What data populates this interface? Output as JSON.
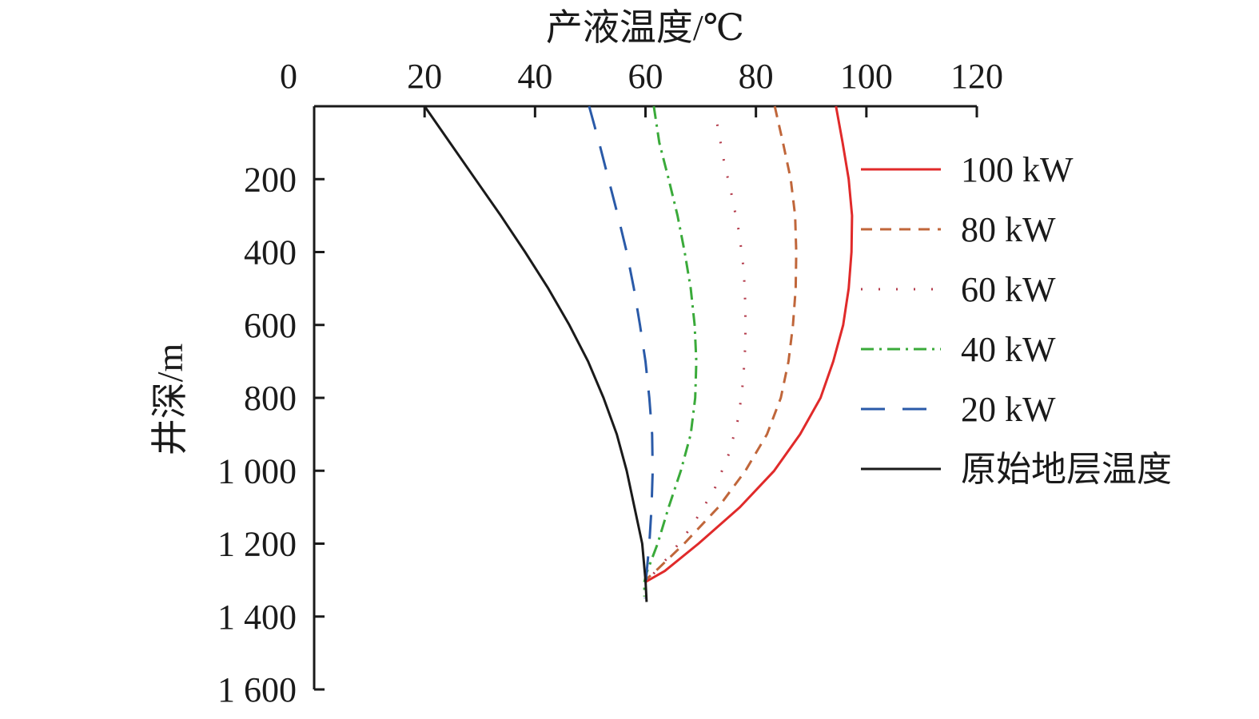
{
  "chart_data": {
    "type": "line",
    "xlabel": "产液温度/℃",
    "ylabel": "井深/m",
    "x_axis_position": "top",
    "y_inverted": true,
    "xlim": [
      0,
      120
    ],
    "ylim": [
      0,
      1600
    ],
    "x_ticks": [
      {
        "value": 0,
        "label": "0"
      },
      {
        "value": 20,
        "label": "20"
      },
      {
        "value": 40,
        "label": "40"
      },
      {
        "value": 60,
        "label": "60"
      },
      {
        "value": 80,
        "label": "80"
      },
      {
        "value": 100,
        "label": "100"
      },
      {
        "value": 120,
        "label": "120"
      }
    ],
    "y_ticks": [
      {
        "value": 200,
        "label": "200"
      },
      {
        "value": 400,
        "label": "400"
      },
      {
        "value": 600,
        "label": "600"
      },
      {
        "value": 800,
        "label": "800"
      },
      {
        "value": 1000,
        "label": "1 000"
      },
      {
        "value": 1200,
        "label": "1 200"
      },
      {
        "value": 1400,
        "label": "1 400"
      },
      {
        "value": 1600,
        "label": "1 600"
      }
    ],
    "grid": false,
    "legend_position": "right",
    "series": [
      {
        "name": "100 kW",
        "color": "#e02a2a",
        "dash": "solid",
        "points": [
          [
            94.5,
            0
          ],
          [
            95.7,
            100
          ],
          [
            96.8,
            200
          ],
          [
            97.4,
            300
          ],
          [
            97.3,
            400
          ],
          [
            96.8,
            500
          ],
          [
            95.8,
            600
          ],
          [
            94.0,
            700
          ],
          [
            91.7,
            800
          ],
          [
            88.0,
            900
          ],
          [
            83.3,
            1000
          ],
          [
            77.1,
            1100
          ],
          [
            69.6,
            1200
          ],
          [
            63.5,
            1275
          ],
          [
            60.0,
            1305
          ]
        ]
      },
      {
        "name": "80 kW",
        "color": "#c0663a",
        "dash": "14,10",
        "points": [
          [
            83.4,
            0
          ],
          [
            84.9,
            100
          ],
          [
            86.3,
            200
          ],
          [
            87.1,
            300
          ],
          [
            87.3,
            400
          ],
          [
            87.2,
            500
          ],
          [
            86.7,
            600
          ],
          [
            85.9,
            700
          ],
          [
            84.5,
            800
          ],
          [
            82.0,
            900
          ],
          [
            78.1,
            1000
          ],
          [
            73.2,
            1100
          ],
          [
            67.0,
            1200
          ],
          [
            62.2,
            1270
          ],
          [
            60.0,
            1300
          ]
        ]
      },
      {
        "name": "60 kW",
        "color": "#b43c4c",
        "dash": "2,20",
        "points": [
          [
            73.0,
            50
          ],
          [
            74.2,
            150
          ],
          [
            75.7,
            250
          ],
          [
            77.0,
            350
          ],
          [
            77.8,
            450
          ],
          [
            78.1,
            550
          ],
          [
            78.1,
            650
          ],
          [
            77.7,
            750
          ],
          [
            76.9,
            850
          ],
          [
            75.2,
            950
          ],
          [
            72.5,
            1050
          ],
          [
            68.5,
            1150
          ],
          [
            64.5,
            1230
          ],
          [
            61.0,
            1290
          ]
        ]
      },
      {
        "name": "40 kW",
        "color": "#3aaa3a",
        "dash": "16,7,3,7",
        "points": [
          [
            61.5,
            0
          ],
          [
            62.5,
            100
          ],
          [
            64.2,
            200
          ],
          [
            65.8,
            300
          ],
          [
            67.1,
            400
          ],
          [
            68.2,
            500
          ],
          [
            68.9,
            600
          ],
          [
            69.2,
            700
          ],
          [
            69.0,
            800
          ],
          [
            68.2,
            900
          ],
          [
            66.4,
            1000
          ],
          [
            64.2,
            1100
          ],
          [
            62.2,
            1200
          ],
          [
            60.2,
            1280
          ],
          [
            59.8,
            1305
          ],
          [
            59.8,
            1345
          ]
        ]
      },
      {
        "name": "20 kW",
        "color": "#2a5aa8",
        "dash": "30,22",
        "points": [
          [
            49.8,
            0
          ],
          [
            51.6,
            100
          ],
          [
            53.3,
            200
          ],
          [
            55.0,
            300
          ],
          [
            56.6,
            400
          ],
          [
            57.9,
            500
          ],
          [
            59.0,
            600
          ],
          [
            60.0,
            700
          ],
          [
            60.7,
            800
          ],
          [
            61.2,
            900
          ],
          [
            61.3,
            1000
          ],
          [
            61.1,
            1100
          ],
          [
            60.7,
            1200
          ],
          [
            60.2,
            1280
          ],
          [
            59.9,
            1350
          ]
        ]
      },
      {
        "name": "原始地层温度",
        "color": "#1a1a1a",
        "dash": "solid",
        "points": [
          [
            20.0,
            0
          ],
          [
            24.6,
            100
          ],
          [
            29.2,
            200
          ],
          [
            33.8,
            300
          ],
          [
            38.2,
            400
          ],
          [
            42.4,
            500
          ],
          [
            46.2,
            600
          ],
          [
            49.6,
            700
          ],
          [
            52.4,
            800
          ],
          [
            54.8,
            900
          ],
          [
            56.6,
            1000
          ],
          [
            58.0,
            1100
          ],
          [
            59.4,
            1200
          ],
          [
            60.0,
            1300
          ],
          [
            60.2,
            1360
          ]
        ]
      }
    ]
  }
}
